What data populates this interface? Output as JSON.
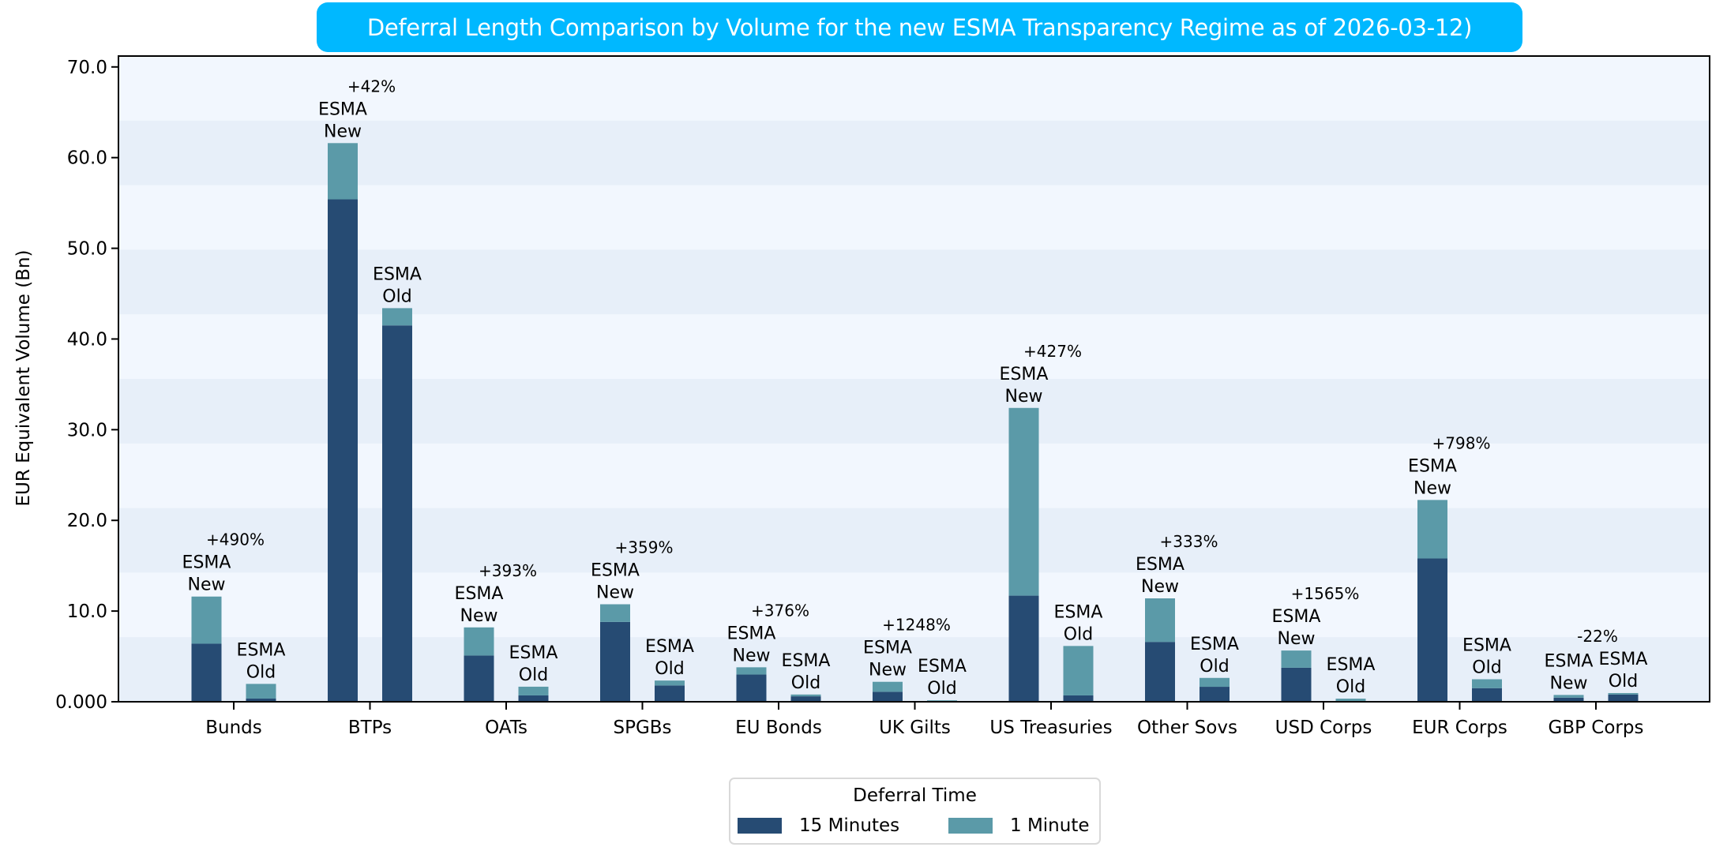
{
  "chart_data": {
    "type": "bar",
    "subtype": "grouped-stacked",
    "title": "Deferral Length Comparison by Volume for the new ESMA Transparency Regime as of 2026-03-12)",
    "xlabel": "",
    "ylabel": "EUR Equivalent Volume (Bn)",
    "ylim": [
      0,
      71.2
    ],
    "yticks": [
      {
        "value": 0,
        "label": "0.000"
      },
      {
        "value": 10,
        "label": "10.0"
      },
      {
        "value": 20,
        "label": "20.0"
      },
      {
        "value": 30,
        "label": "30.0"
      },
      {
        "value": 40,
        "label": "40.0"
      },
      {
        "value": 50,
        "label": "50.0"
      },
      {
        "value": 60,
        "label": "60.0"
      },
      {
        "value": 70,
        "label": "70.0"
      }
    ],
    "background_bands": 10,
    "grid": false,
    "categories": [
      "Bunds",
      "BTPs",
      "OATs",
      "SPGBs",
      "EU Bonds",
      "UK Gilts",
      "US Treasuries",
      "Other Sovs",
      "USD Corps",
      "EUR Corps",
      "GBP Corps"
    ],
    "groups": [
      {
        "name": "ESMA New",
        "label_lines": [
          "ESMA",
          "New"
        ],
        "series": [
          {
            "name": "15 Minutes",
            "values": [
              6.4,
              55.4,
              5.1,
              8.8,
              3.0,
              1.1,
              11.7,
              6.6,
              3.75,
              15.8,
              0.45
            ]
          },
          {
            "name": "1 Minute",
            "values": [
              5.2,
              6.2,
              3.1,
              1.95,
              0.8,
              1.1,
              20.7,
              4.8,
              1.9,
              6.45,
              0.3
            ]
          }
        ]
      },
      {
        "name": "ESMA Old",
        "label_lines": [
          "ESMA",
          "Old"
        ],
        "series": [
          {
            "name": "15 Minutes",
            "values": [
              0.35,
              41.5,
              0.7,
              1.8,
              0.6,
              0.05,
              0.7,
              1.65,
              0.05,
              1.5,
              0.8
            ]
          },
          {
            "name": "1 Minute",
            "values": [
              1.62,
              1.9,
              0.96,
              0.54,
              0.2,
              0.11,
              5.45,
              0.98,
              0.29,
              0.98,
              0.16
            ]
          }
        ]
      }
    ],
    "change_labels": [
      "+490%",
      "+42%",
      "+393%",
      "+359%",
      "+376%",
      "+1248%",
      "+427%",
      "+333%",
      "+1565%",
      "+798%",
      "-22%"
    ],
    "legend": {
      "title": "Deferral Time",
      "placement": "bottom-center",
      "entries": [
        {
          "name": "15 Minutes",
          "color": "#264B73"
        },
        {
          "name": "1 Minute",
          "color": "#5B9AA8"
        }
      ]
    }
  },
  "colors": {
    "title_bg": "#00B8FF",
    "title_fg": "#FFFFFF",
    "band_light": "#F2F7FE",
    "band_dark": "#E7EFF9",
    "series_15min": "#264B73",
    "series_1min": "#5B9AA8"
  }
}
